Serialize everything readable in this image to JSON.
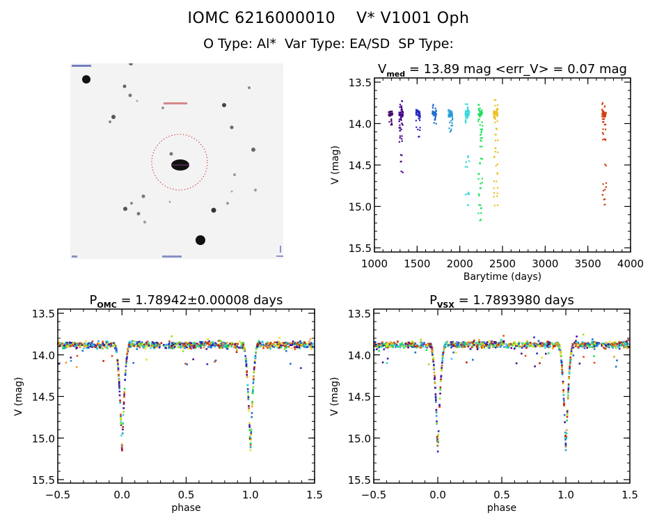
{
  "header": {
    "title_line1": "IOMC 6216000010    V* V1001 Oph",
    "title_line2": "O Type: Al*  Var Type: EA/SD  SP Type:"
  },
  "finder_image": {
    "description": "DSS finder chart centered on target with red dotted circle",
    "circle_color": "#cc0000"
  },
  "chart_data": [
    {
      "id": "lightcurve",
      "type": "scatter",
      "title_main": "V",
      "title_sub": "med",
      "title_rest": " = 13.89 mag <err_V> = 0.07 mag",
      "xlabel": "Barytime (days)",
      "ylabel": "V (mag)",
      "xlim": [
        1000,
        4000
      ],
      "ylim": [
        15.5,
        13.5
      ],
      "y_inverted": true,
      "xticks": [
        1000,
        1500,
        2000,
        2500,
        3000,
        3500,
        4000
      ],
      "yticks": [
        13.5,
        14.0,
        14.5,
        15.0,
        15.5
      ],
      "ytick_labels": [
        "13.5",
        "14.0",
        "14.5",
        "15.0",
        "15.5"
      ],
      "color_scale": "rainbow by time",
      "clusters": [
        {
          "t": 1190,
          "color": "#4b0a6e",
          "mags": [
            13.95,
            13.97,
            14.0,
            14.02
          ]
        },
        {
          "t": 1310,
          "color": "#4b0a8c",
          "mags": [
            13.72,
            13.78,
            13.8,
            13.82,
            13.84,
            13.86,
            13.88,
            13.9,
            13.92,
            13.94,
            13.96,
            13.98,
            14.0,
            14.02,
            14.04,
            14.06,
            14.08,
            14.15,
            14.18,
            14.22,
            14.38,
            14.46,
            14.58
          ]
        },
        {
          "t": 1510,
          "color": "#2a28c0",
          "mags": [
            13.84,
            13.86,
            13.88,
            13.9,
            13.92,
            13.94,
            13.96,
            14.05,
            14.08,
            14.15
          ]
        },
        {
          "t": 1700,
          "color": "#1e6ad0",
          "mags": [
            13.78,
            13.82,
            13.85,
            13.88,
            13.9,
            13.93,
            13.96,
            14.0
          ]
        },
        {
          "t": 1890,
          "color": "#2a9ad8",
          "mags": [
            13.84,
            13.87,
            13.9,
            13.93,
            13.96,
            13.99,
            14.02,
            14.06,
            14.09
          ]
        },
        {
          "t": 2090,
          "color": "#30d8d8",
          "mags": [
            13.77,
            13.81,
            13.85,
            13.88,
            13.9,
            13.93,
            13.96,
            13.98,
            14.4,
            14.46,
            14.52,
            14.84,
            14.86,
            14.98
          ]
        },
        {
          "t": 2240,
          "color": "#20e060",
          "mags": [
            13.78,
            13.82,
            13.86,
            13.9,
            13.94,
            13.98,
            14.02,
            14.06,
            14.1,
            14.14,
            14.18,
            14.2,
            14.28,
            14.42,
            14.48,
            14.6,
            14.66,
            14.72,
            14.78,
            14.86,
            14.98,
            15.02,
            15.08,
            15.16
          ]
        },
        {
          "t": 2420,
          "color": "#e8c020",
          "mags": [
            13.72,
            13.78,
            13.82,
            13.86,
            13.9,
            13.94,
            13.98,
            14.06,
            14.14,
            14.2,
            14.3,
            14.34,
            14.4,
            14.5,
            14.6,
            14.7,
            14.78,
            14.84,
            14.88,
            14.98
          ]
        },
        {
          "t": 3690,
          "color": "#d04010",
          "mags": [
            13.76,
            13.8,
            13.83,
            13.86,
            13.89,
            13.92,
            13.95,
            13.98,
            14.02,
            14.06,
            14.12,
            14.18,
            14.2,
            14.5,
            14.72,
            14.76,
            14.8,
            14.86,
            14.92,
            14.98
          ]
        }
      ]
    },
    {
      "id": "phase_omc",
      "type": "scatter",
      "title_main": "P",
      "title_sub": "OMC",
      "title_rest": " = 1.78942±0.00008 days",
      "xlabel": "phase",
      "ylabel": "V (mag)",
      "xlim": [
        -0.5,
        1.5
      ],
      "ylim": [
        15.5,
        13.5
      ],
      "y_inverted": true,
      "xticks": [
        -0.5,
        0.0,
        0.5,
        1.0,
        1.5
      ],
      "xtick_labels": [
        "−0.5",
        "0.0",
        "0.5",
        "1.0",
        "1.5"
      ],
      "yticks": [
        13.5,
        14.0,
        14.5,
        15.0,
        15.5
      ],
      "ytick_labels": [
        "13.5",
        "14.0",
        "14.5",
        "15.0",
        "15.5"
      ],
      "period_days": 1.78942,
      "baseline_mag": 13.88,
      "primary_min_mag": 15.16,
      "eclipse_phases": [
        0.0,
        1.0
      ],
      "eclipse_halfwidth_phase": 0.06
    },
    {
      "id": "phase_vsx",
      "type": "scatter",
      "title_main": "P",
      "title_sub": "VSX",
      "title_rest": " = 1.7893980 days",
      "xlabel": "phase",
      "ylabel": "V (mag)",
      "xlim": [
        -0.5,
        1.5
      ],
      "ylim": [
        15.5,
        13.5
      ],
      "y_inverted": true,
      "xticks": [
        -0.5,
        0.0,
        0.5,
        1.0,
        1.5
      ],
      "xtick_labels": [
        "−0.5",
        "0.0",
        "0.5",
        "1.0",
        "1.5"
      ],
      "yticks": [
        13.5,
        14.0,
        14.5,
        15.0,
        15.5
      ],
      "ytick_labels": [
        "13.5",
        "14.0",
        "14.5",
        "15.0",
        "15.5"
      ],
      "period_days": 1.789398,
      "baseline_mag": 13.88,
      "primary_min_mag": 15.16,
      "eclipse_phases": [
        0.0,
        1.0
      ],
      "eclipse_halfwidth_phase": 0.06
    }
  ],
  "phase_colors": [
    "#4b0a8c",
    "#2a28c0",
    "#1e6ad0",
    "#2a9ad8",
    "#30d8d8",
    "#20e060",
    "#9ae020",
    "#e8e020",
    "#e8a020",
    "#e05010",
    "#c02010"
  ]
}
